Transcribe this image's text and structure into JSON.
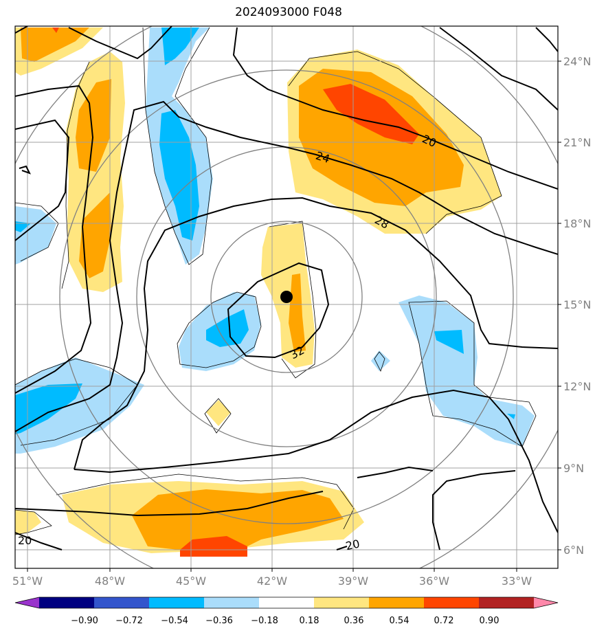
{
  "title": "2024093000 F048",
  "lon_labels": [
    "51°W",
    "48°W",
    "45°W",
    "42°W",
    "39°W",
    "36°W",
    "33°W"
  ],
  "lat_labels": [
    "24°N",
    "21°N",
    "18°N",
    "15°N",
    "12°N",
    "9°N",
    "6°N"
  ],
  "contour_labels": [
    "20",
    "24",
    "28",
    "32",
    "20",
    "20"
  ],
  "colorbar": {
    "colors": [
      "#9933cc",
      "#000080",
      "#3355cc",
      "#00bbff",
      "#aaddfb",
      "#ffffff",
      "#ffe680",
      "#ffa500",
      "#ff4500",
      "#b22222",
      "#ff88aa"
    ],
    "tick_labels": [
      "−0.90",
      "−0.72",
      "−0.54",
      "−0.36",
      "−0.18",
      "0.18",
      "0.36",
      "0.54",
      "0.72",
      "0.90"
    ]
  },
  "storm_center": {
    "lon": -41.5,
    "lat": 15.3
  }
}
